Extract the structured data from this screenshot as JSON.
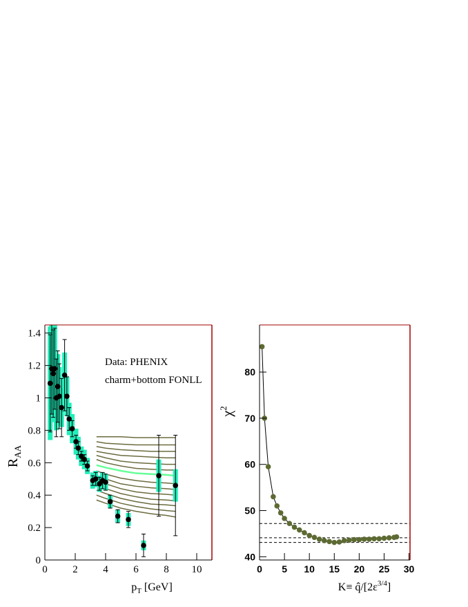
{
  "chart_data": [
    {
      "type": "scatter",
      "xlabel": "p",
      "xlabel_sub": "T",
      "xlabel_end": " [GeV]",
      "ylabel": "R",
      "ylabel_sub": "AA",
      "annotations": [
        "Data: PHENIX",
        "charm+bottom FONLL"
      ],
      "xlim": [
        0,
        11
      ],
      "ylim": [
        0,
        1.45
      ],
      "xticks": [
        0,
        2,
        4,
        6,
        8,
        10
      ],
      "yticks": [
        0,
        0.2,
        0.4,
        0.6,
        0.8,
        1,
        1.2,
        1.4
      ],
      "frame_color": "#a00000",
      "series": [
        {
          "color": "#000000",
          "syst_color": "#22eebb",
          "x": [
            0.35,
            0.45,
            0.55,
            0.65,
            0.75,
            0.85,
            0.95,
            1.1,
            1.3,
            1.45,
            1.6,
            1.8,
            2.05,
            2.2,
            2.4,
            2.6,
            2.8,
            3.15,
            3.35,
            3.6,
            3.8,
            4.0,
            4.3,
            4.8,
            5.5,
            6.5,
            7.5,
            8.6
          ],
          "values": [
            1.09,
            1.18,
            1.15,
            1.18,
            1.0,
            1.07,
            1.01,
            0.94,
            1.14,
            1.01,
            0.87,
            0.81,
            0.73,
            0.69,
            0.64,
            0.62,
            0.58,
            0.49,
            0.5,
            0.47,
            0.49,
            0.48,
            0.36,
            0.27,
            0.25,
            0.09,
            0.52,
            0.46
          ],
          "errors": [
            0.3,
            0.28,
            0.27,
            0.25,
            0.24,
            0.22,
            0.2,
            0.18,
            0.22,
            0.12,
            0.07,
            0.05,
            0.04,
            0.04,
            0.03,
            0.03,
            0.03,
            0.03,
            0.04,
            0.04,
            0.05,
            0.05,
            0.04,
            0.04,
            0.05,
            0.07,
            0.25,
            0.31
          ],
          "syst": [
            0.35,
            0.3,
            0.3,
            0.28,
            0.2,
            0.2,
            0.18,
            0.12,
            0.14,
            0.12,
            0.1,
            0.09,
            0.08,
            0.07,
            0.06,
            0.06,
            0.05,
            0.05,
            0.05,
            0.05,
            0.05,
            0.05,
            0.04,
            0.04,
            0.04,
            0.03,
            0.1,
            0.1
          ]
        }
      ],
      "curves": {
        "x": [
          3.4,
          4,
          5,
          6,
          7,
          8,
          8.6
        ],
        "series": [
          {
            "color": "#6b6b3f",
            "values": [
              0.76,
              0.76,
              0.76,
              0.755,
              0.755,
              0.755,
              0.755
            ]
          },
          {
            "color": "#6b6b3f",
            "values": [
              0.73,
              0.72,
              0.715,
              0.71,
              0.71,
              0.71,
              0.71
            ]
          },
          {
            "color": "#6b6b3f",
            "values": [
              0.7,
              0.69,
              0.68,
              0.675,
              0.67,
              0.67,
              0.67
            ]
          },
          {
            "color": "#6b6b3f",
            "values": [
              0.67,
              0.66,
              0.645,
              0.64,
              0.635,
              0.63,
              0.63
            ]
          },
          {
            "color": "#6b6b3f",
            "values": [
              0.645,
              0.63,
              0.61,
              0.6,
              0.595,
              0.59,
              0.59
            ]
          },
          {
            "color": "#6b6b3f",
            "values": [
              0.62,
              0.6,
              0.58,
              0.565,
              0.56,
              0.555,
              0.555
            ]
          },
          {
            "color": "#66ff99",
            "values": [
              0.585,
              0.57,
              0.55,
              0.535,
              0.53,
              0.525,
              0.52
            ]
          },
          {
            "color": "#6b6b3f",
            "values": [
              0.55,
              0.53,
              0.505,
              0.49,
              0.48,
              0.475,
              0.47
            ]
          },
          {
            "color": "#6b6b3f",
            "values": [
              0.52,
              0.5,
              0.47,
              0.455,
              0.445,
              0.44,
              0.435
            ]
          },
          {
            "color": "#6b6b3f",
            "values": [
              0.49,
              0.47,
              0.44,
              0.42,
              0.41,
              0.405,
              0.4
            ]
          },
          {
            "color": "#6b6b3f",
            "values": [
              0.46,
              0.44,
              0.41,
              0.39,
              0.375,
              0.37,
              0.365
            ]
          },
          {
            "color": "#6b6b3f",
            "values": [
              0.43,
              0.41,
              0.38,
              0.36,
              0.345,
              0.34,
              0.335
            ]
          },
          {
            "color": "#6b6b3f",
            "values": [
              0.4,
              0.38,
              0.35,
              0.33,
              0.315,
              0.305,
              0.3
            ]
          },
          {
            "color": "#6b6b3f",
            "values": [
              0.37,
              0.35,
              0.32,
              0.3,
              0.285,
              0.275,
              0.265
            ]
          }
        ]
      }
    },
    {
      "type": "scatter",
      "xlabel": "K≡ q̂/[2ε",
      "xlabel_sup": "3/4",
      "xlabel_end": "]",
      "ylabel": "χ",
      "ylabel_sup": "2",
      "xlim": [
        0,
        30.2
      ],
      "ylim": [
        39.3,
        90.2
      ],
      "xticks": [
        0,
        5,
        10,
        15,
        20,
        25,
        30
      ],
      "yticks": [
        40,
        50,
        60,
        70,
        80
      ],
      "frame_color": "#a00000",
      "hlines": [
        47.2,
        44.1,
        43.1
      ],
      "series": [
        {
          "color": "#5d6a32",
          "line": true,
          "x": [
            0.5,
            1,
            1.75,
            2.75,
            3.5,
            4.25,
            5,
            6,
            7,
            8,
            9,
            10,
            11,
            12,
            13,
            14,
            15,
            16,
            17,
            18,
            19,
            20,
            21,
            22,
            23,
            24,
            25,
            26,
            27,
            27.5
          ],
          "values": [
            85.5,
            70,
            59.5,
            53,
            51,
            49.5,
            48.3,
            47.2,
            46.4,
            45.8,
            45.2,
            44.6,
            44.2,
            43.8,
            43.5,
            43.3,
            43.1,
            43.2,
            43.5,
            43.6,
            43.7,
            43.7,
            43.8,
            43.8,
            43.9,
            43.9,
            44,
            44.1,
            44.2,
            44.3
          ]
        }
      ]
    }
  ]
}
